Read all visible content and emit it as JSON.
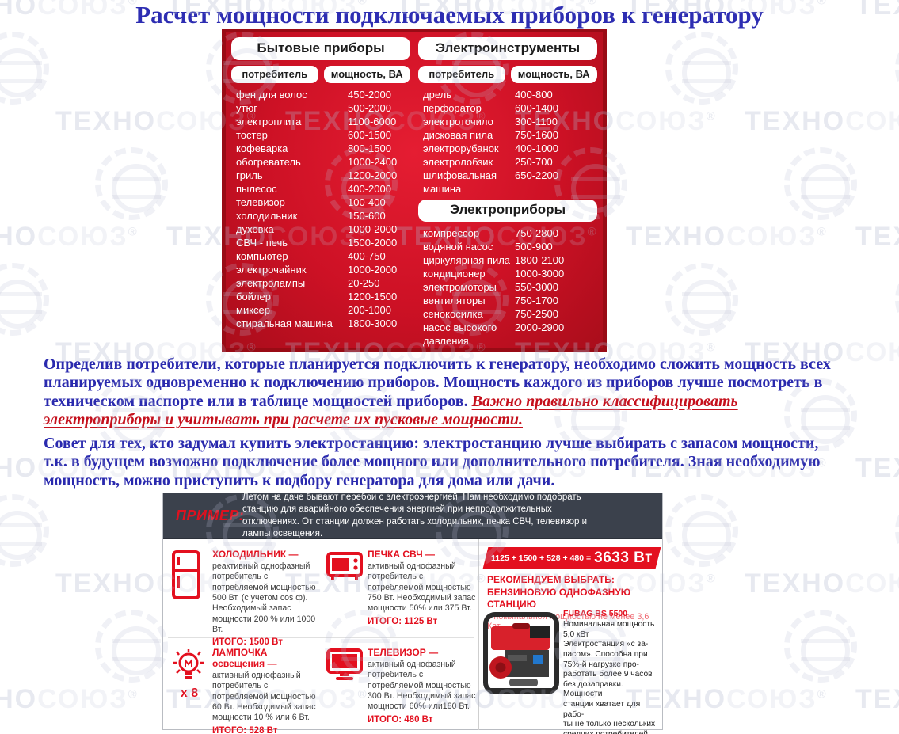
{
  "title": "Расчет мощности подключаемых приборов к генератору",
  "watermark": {
    "text_dark": "ТЕХНО",
    "text_light": "СОЮЗ",
    "reg": "®"
  },
  "power_table": {
    "left": {
      "header": "Бытовые приборы",
      "col_consumer": "потребитель",
      "col_power": "мощность, ВА",
      "rows": [
        [
          "фен для волос",
          "450-2000"
        ],
        [
          "утюг",
          "500-2000"
        ],
        [
          "электроплита",
          "1100-6000"
        ],
        [
          "тостер",
          "600-1500"
        ],
        [
          "кофеварка",
          "800-1500"
        ],
        [
          "обогреватель",
          "1000-2400"
        ],
        [
          "гриль",
          "1200-2000"
        ],
        [
          "пылесос",
          "400-2000"
        ],
        [
          "телевизор",
          "100-400"
        ],
        [
          "холодильник",
          "150-600"
        ],
        [
          "духовка",
          "1000-2000"
        ],
        [
          "СВЧ - печь",
          "1500-2000"
        ],
        [
          "компьютер",
          "400-750"
        ],
        [
          "электрочайник",
          "1000-2000"
        ],
        [
          "электролампы",
          "20-250"
        ],
        [
          "бойлер",
          "1200-1500"
        ],
        [
          "миксер",
          "200-1000"
        ],
        [
          "стиральная машина",
          "1800-3000"
        ]
      ]
    },
    "right": {
      "header": "Электроинструменты",
      "col_consumer": "потребитель",
      "col_power": "мощность, ВА",
      "rows": [
        [
          "дрель",
          "400-800"
        ],
        [
          "перфоратор",
          "600-1400"
        ],
        [
          "электроточило",
          "300-1100"
        ],
        [
          "дисковая пила",
          "750-1600"
        ],
        [
          "электрорубанок",
          "400-1000"
        ],
        [
          "электролобзик",
          "250-700"
        ],
        [
          "шлифовальная машина",
          "650-2200"
        ]
      ],
      "subheader": "Электроприборы",
      "rows2": [
        [
          "компрессор",
          "750-2800"
        ],
        [
          "водяной насос",
          "500-900"
        ],
        [
          "циркулярная пила",
          "1800-2100"
        ],
        [
          "кондиционер",
          "1000-3000"
        ],
        [
          "электромоторы",
          "550-3000"
        ],
        [
          "вентиляторы",
          "750-1700"
        ],
        [
          "сенокосилка",
          "750-2500"
        ],
        [
          "насос высокого давления",
          "2000-2900"
        ]
      ]
    }
  },
  "paragraphs": {
    "p1_blue": "Определив потребители, которые планируется подключить к генератору, необходимо сложить мощность всех планируемых одновременно к подключению приборов. Мощность каждого из приборов лучше посмотреть в техническом паспорте или в таблице мощностей приборов. ",
    "p1_red": "Важно правильно классифицировать электроприборы и учитывать при расчете их пусковые мощности.",
    "p2_blue": "Совет для тех, кто задумал купить электростанцию: электростанцию лучше выбирать с запасом мощности, т.к. в будущем возможно подключение более мощного или дополнительного потребителя. Зная необходимую мощность, можно приступить к подбору генератора для дома или дачи."
  },
  "example": {
    "label": "ПРИМЕР:",
    "intro": "Летом на даче бывают перебои с электроэнергией. Нам необходимо подобрать станцию для аварийного обеспечения энергией при непродолжительных отключениях. От станции должен работать холодильник, печка СВЧ, телевизор и лампы освещения.",
    "items": [
      {
        "icon": "fridge-icon",
        "title": "ХОЛОДИЛЬНИК —",
        "desc": "реактивный однофазный потребитель с потребляемой мощностью 500 Вт. (с учетом cos ф). Необходимый запас мощности 200 % или 1000 Вт.",
        "total": "ИТОГО: 1500 Вт"
      },
      {
        "icon": "microwave-icon",
        "title": "ПЕЧКА СВЧ —",
        "desc": "активный однофазный потребитель с потребляемой мощностью 750 Вт. Необходимый запас мощности 50% или 375 Вт.",
        "total": "ИТОГО: 1125 Вт"
      },
      {
        "icon": "bulb-icon",
        "multiplier": "х 8",
        "title": "ЛАМПОЧКА освещения —",
        "desc": "активный однофазный потребитель с потребляемой мощностью 60 Вт. Необходимый запас мощности 10 % или 6 Вт.",
        "total": "ИТОГО: 528 Вт"
      },
      {
        "icon": "tv-icon",
        "title": "ТЕЛЕВИЗОР —",
        "desc": "активный однофазный потребитель с потребляемой мощностью 300 Вт. Необходимый запас мощности 60% или180 Вт.",
        "total": "ИТОГО: 480 Вт"
      }
    ],
    "sum": {
      "equation": "1125 + 1500 + 528 + 480 =",
      "total": "3633 Вт"
    },
    "recommendation": {
      "line1": "РЕКОМЕНДУЕМ ВЫБРАТЬ:",
      "line2": "БЕНЗИНОВУЮ ОДНОФАЗНУЮ СТАНЦИЮ",
      "line3": "с номинальной мощностью не менее 3,6 Квт"
    },
    "generator": {
      "model": "FUBAG BS 5500",
      "desc": "Номинальная мощность\n5,0 кВт\nЭлектростанция «с за-\nпасом». Способна при\n75%-й нагрузке про-\nработать более 9 часов\nбез дозаправки. Мощности\nстанции хватает для рабо-\nты не только нескольких\nсредних потребителей,\nно и для подключения\nоборудования высокой\nмощности."
    }
  },
  "colors": {
    "table_red": "#cd1125",
    "table_border": "#990b15",
    "accent_red": "#e3101f",
    "blue_text": "#2a2aae",
    "example_header_bg": "#3b414c"
  }
}
